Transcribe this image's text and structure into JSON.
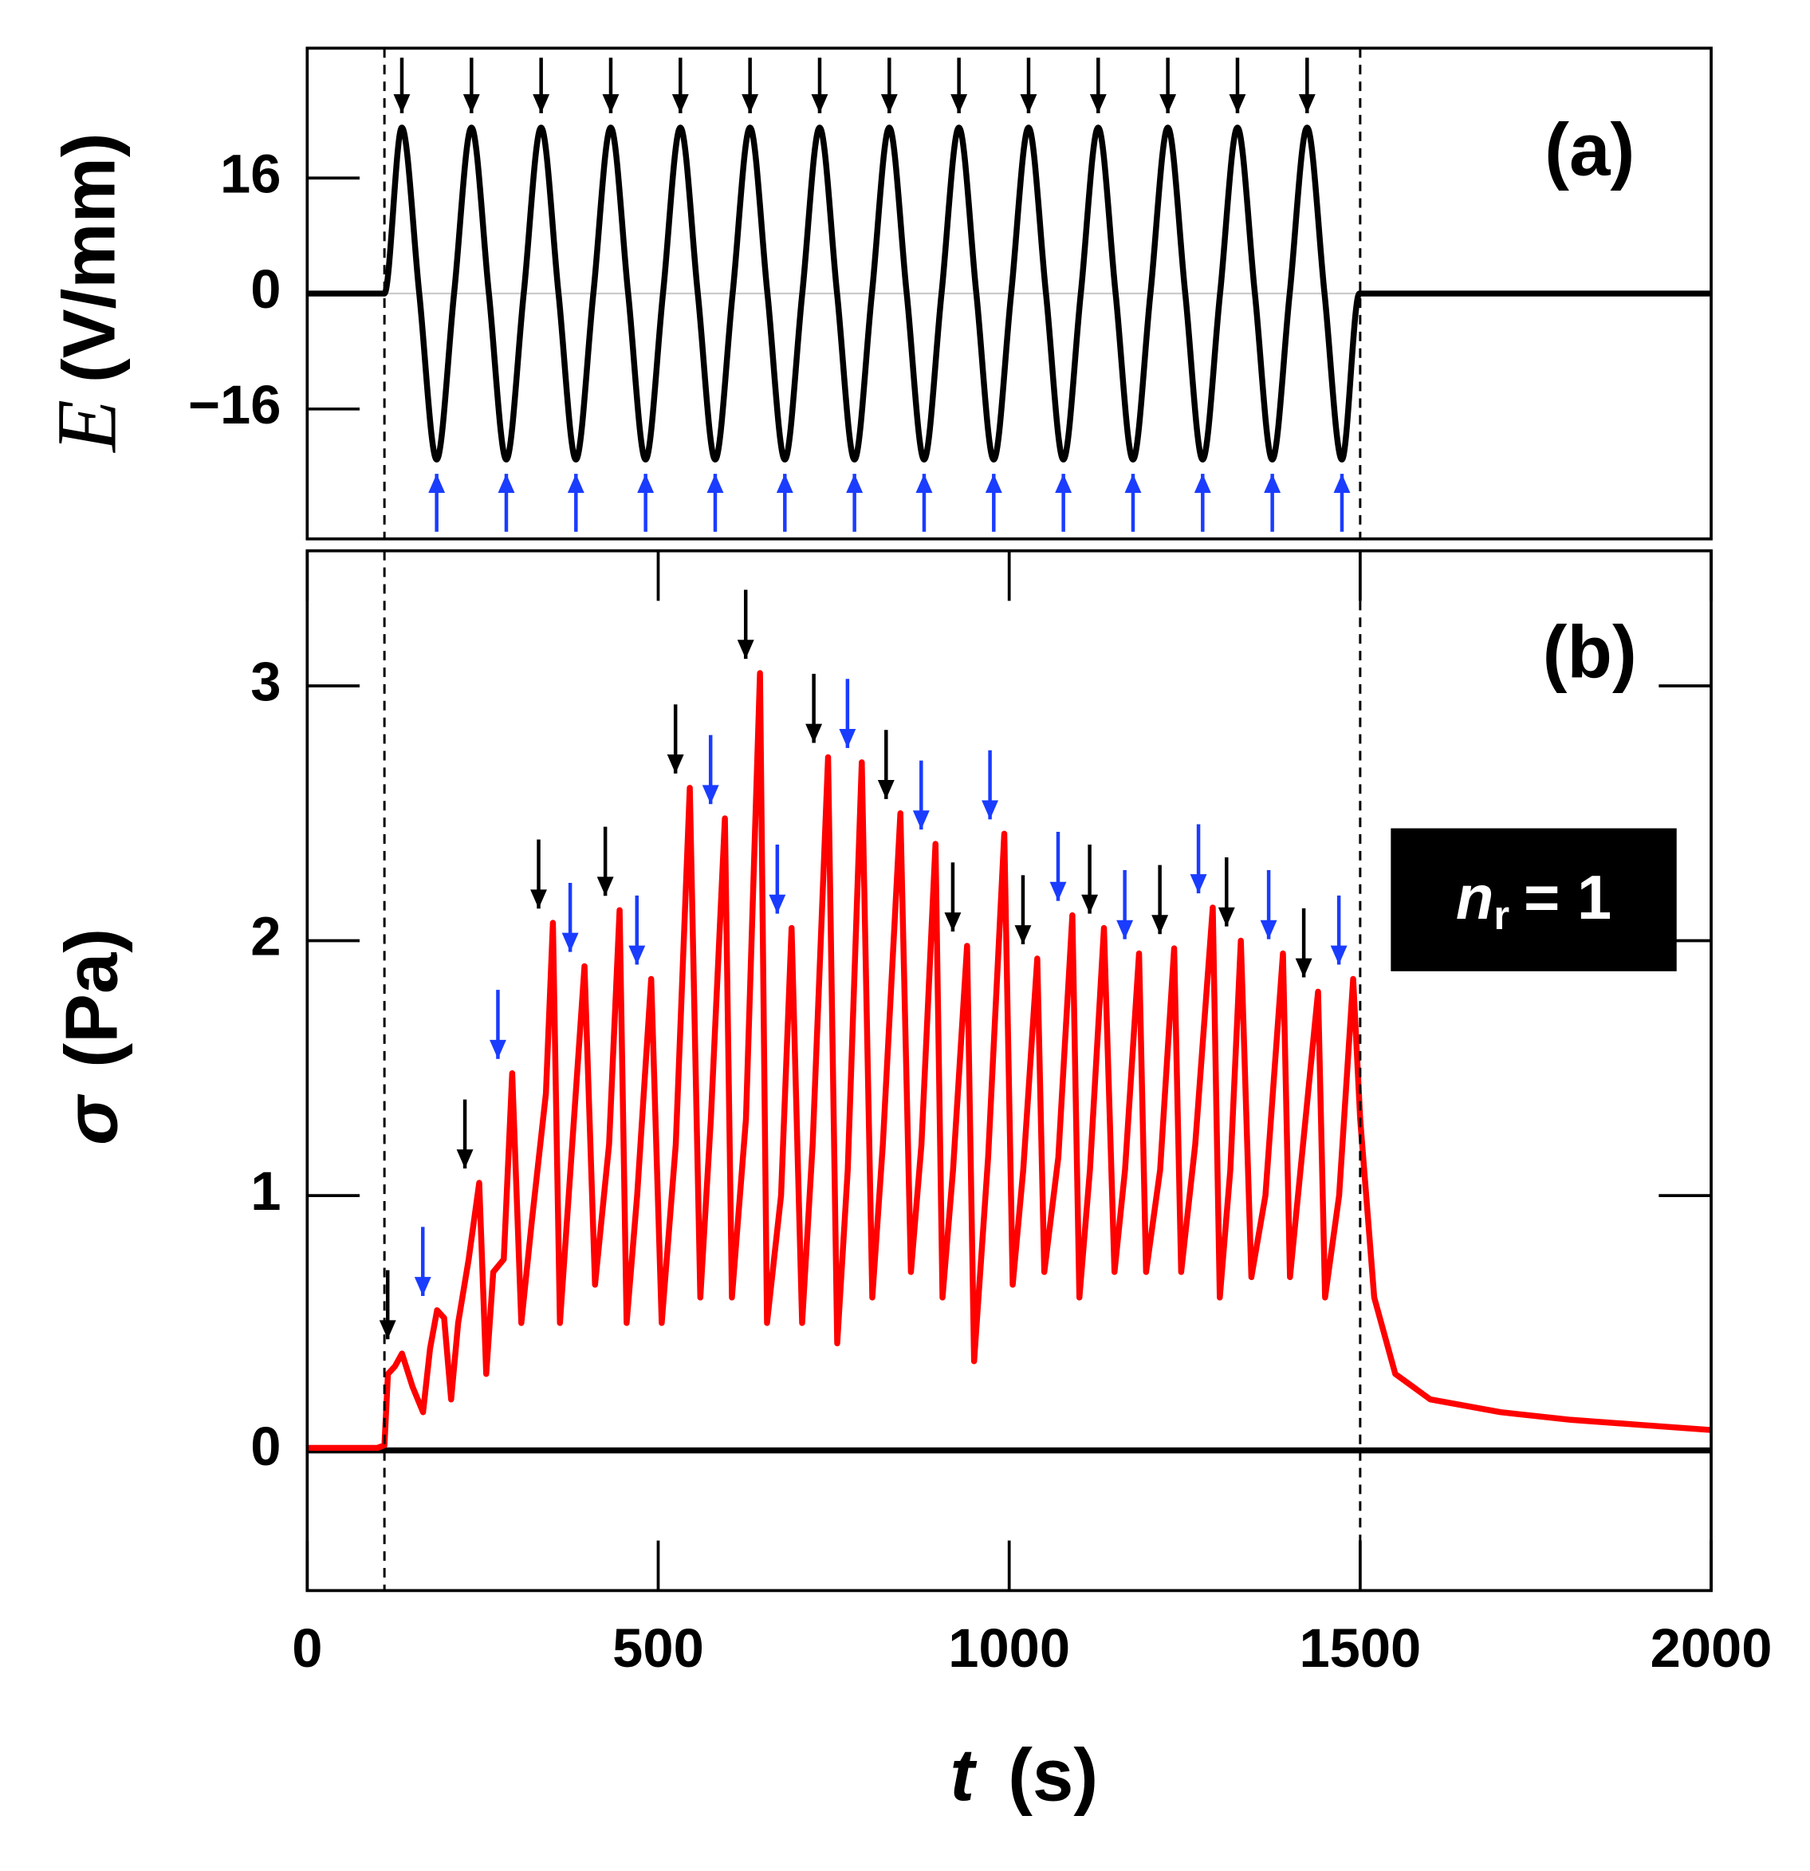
{
  "chart_data": [
    {
      "type": "line",
      "panel_label": "(a)",
      "smooth": true,
      "ylabel": {
        "symbol": "E",
        "unit": "(V/mm)"
      },
      "xlim": [
        0,
        2000
      ],
      "ylim": [
        -34,
        34
      ],
      "yticks": [
        {
          "value": -16,
          "label": "−16"
        },
        0,
        16
      ],
      "zero_line": true,
      "vlines": [
        110,
        1500
      ],
      "series": [
        {
          "color": "#000000",
          "x": [
            0,
            110,
            134.8,
            159.6,
            184.4,
            209.2,
            234,
            258.8,
            283.6,
            308.4,
            333.2,
            358,
            382.8,
            407.6,
            432.4,
            457.2,
            482,
            506.8,
            531.6,
            556.4,
            581.2,
            606,
            630.8,
            655.6,
            680.4,
            705.2,
            730,
            754.8,
            779.6,
            804.4,
            829.2,
            854,
            878.8,
            903.6,
            928.4,
            953.2,
            978,
            1002.8,
            1027.6,
            1052.4,
            1077.2,
            1102,
            1126.8,
            1151.6,
            1176.4,
            1201.2,
            1226,
            1250.8,
            1275.6,
            1300.4,
            1325.2,
            1350,
            1374.8,
            1399.6,
            1424.4,
            1449.2,
            1474,
            1498.8,
            2000
          ],
          "values": [
            0,
            0,
            23,
            0,
            -23,
            0,
            23,
            0,
            -23,
            0,
            23,
            0,
            -23,
            0,
            23,
            0,
            -23,
            0,
            23,
            0,
            -23,
            0,
            23,
            0,
            -23,
            0,
            23,
            0,
            -23,
            0,
            23,
            0,
            -23,
            0,
            23,
            0,
            -23,
            0,
            23,
            0,
            -23,
            0,
            23,
            0,
            -23,
            0,
            23,
            0,
            -23,
            0,
            23,
            0,
            -23,
            0,
            23,
            0,
            -23,
            0,
            0
          ]
        }
      ]
    },
    {
      "type": "line",
      "panel_label": "(b)",
      "ylabel": {
        "symbol": "σ",
        "unit": "(Pa)"
      },
      "xlabel": {
        "symbol": "t",
        "unit": "(s)"
      },
      "annotation": {
        "symbol": "n",
        "subscript": "r",
        "text": "= 1"
      },
      "xlim": [
        0,
        2000
      ],
      "ylim": [
        -0.55,
        3.53
      ],
      "xticks": [
        0,
        500,
        1000,
        1500,
        2000
      ],
      "yticks": [
        0,
        1,
        2,
        3
      ],
      "vlines": [
        110,
        1500
      ],
      "series": [
        {
          "color": "#000000",
          "x": [
            0,
            2000
          ],
          "values": [
            0,
            0
          ]
        },
        {
          "color": "#ff0000",
          "x": [
            0,
            100,
            110,
            115,
            125,
            135,
            150,
            165,
            175,
            185,
            195,
            205,
            215,
            230,
            245,
            255,
            265,
            280,
            292,
            305,
            320,
            340,
            350,
            360,
            375,
            395,
            410,
            430,
            445,
            455,
            470,
            490,
            505,
            525,
            545,
            560,
            575,
            595,
            605,
            625,
            645,
            655,
            675,
            690,
            705,
            720,
            742,
            755,
            770,
            790,
            805,
            820,
            845,
            860,
            875,
            895,
            905,
            920,
            940,
            950,
            970,
            993,
            1005,
            1020,
            1040,
            1050,
            1070,
            1090,
            1100,
            1115,
            1135,
            1150,
            1165,
            1185,
            1195,
            1215,
            1235,
            1245,
            1265,
            1290,
            1300,
            1315,
            1330,
            1345,
            1365,
            1390,
            1400,
            1415,
            1440,
            1450,
            1470,
            1490,
            1500,
            1520,
            1550,
            1600,
            1700,
            1800,
            1900,
            2000
          ],
          "values": [
            0.01,
            0.01,
            0.02,
            0.3,
            0.33,
            0.38,
            0.25,
            0.15,
            0.4,
            0.55,
            0.52,
            0.2,
            0.5,
            0.75,
            1.05,
            0.3,
            0.7,
            0.75,
            1.48,
            0.5,
            0.9,
            1.4,
            2.07,
            0.5,
            1.1,
            1.9,
            0.65,
            1.2,
            2.12,
            0.5,
            1.0,
            1.85,
            0.5,
            1.2,
            2.6,
            0.6,
            1.3,
            2.48,
            0.6,
            1.3,
            3.05,
            0.5,
            1.0,
            2.05,
            0.5,
            1.2,
            2.72,
            0.42,
            1.1,
            2.7,
            0.6,
            1.2,
            2.5,
            0.7,
            1.2,
            2.38,
            0.6,
            1.1,
            1.98,
            0.35,
            1.15,
            2.42,
            0.65,
            1.1,
            1.93,
            0.7,
            1.15,
            2.1,
            0.6,
            1.1,
            2.05,
            0.7,
            1.1,
            1.95,
            0.7,
            1.1,
            1.97,
            0.7,
            1.2,
            2.13,
            0.6,
            1.1,
            2.0,
            0.68,
            1.0,
            1.95,
            0.68,
            1.1,
            1.8,
            0.6,
            1.0,
            1.85,
            1.3,
            0.6,
            0.3,
            0.2,
            0.15,
            0.12,
            0.1,
            0.08
          ]
        }
      ]
    }
  ]
}
